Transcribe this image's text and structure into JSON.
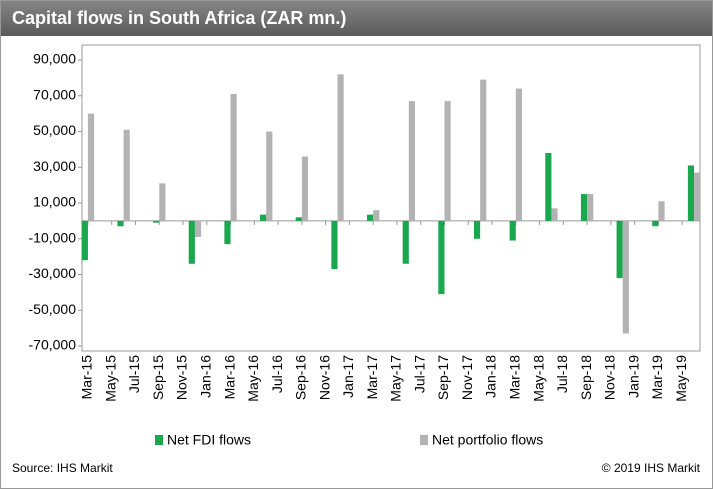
{
  "chart_data": {
    "type": "bar",
    "title": "Capital flows in South Africa (ZAR mn.)",
    "source": "Source: IHS Markit",
    "copyright": "© 2019 IHS Markit",
    "categories": [
      "Mar-15",
      null,
      "May-15",
      null,
      "Jul-15",
      null,
      "Sep-15",
      null,
      "Nov-15",
      null,
      "Jan-16",
      null,
      "Mar-16",
      null,
      "May-16",
      null,
      "Jul-16",
      null,
      "Sep-16",
      null,
      "Nov-16",
      null,
      "Jan-17",
      null,
      "Mar-17",
      null,
      "May-17",
      null,
      "Jul-17",
      null,
      "Sep-17",
      null,
      "Nov-17",
      null,
      "Jan-18",
      null,
      "Mar-18",
      null,
      "May-18",
      null,
      "Jul-18",
      null,
      "Sep-18",
      null,
      "Nov-18",
      null,
      "Jan-19",
      null,
      "Mar-19",
      null,
      "May-19",
      null
    ],
    "series": [
      {
        "name": "Net FDI flows",
        "color": "#1aa84f",
        "values": [
          -22000,
          null,
          null,
          -3000,
          null,
          null,
          -1000,
          null,
          null,
          -24000,
          null,
          null,
          -13000,
          null,
          null,
          3500,
          null,
          null,
          2000,
          null,
          null,
          -27000,
          null,
          null,
          3500,
          null,
          null,
          -24000,
          null,
          null,
          -41000,
          null,
          null,
          -10000,
          null,
          null,
          -11000,
          null,
          null,
          38000,
          null,
          null,
          15000,
          null,
          null,
          -32000,
          null,
          null,
          -3000,
          null,
          null,
          31000
        ]
      },
      {
        "name": "Net portfolio flows",
        "color": "#b3b3b3",
        "values": [
          60000,
          null,
          null,
          51000,
          null,
          null,
          21000,
          null,
          null,
          -9000,
          null,
          null,
          71000,
          null,
          null,
          50000,
          null,
          null,
          36000,
          null,
          null,
          82000,
          null,
          null,
          6000,
          null,
          null,
          67000,
          null,
          null,
          67000,
          null,
          null,
          79000,
          null,
          null,
          74000,
          null,
          null,
          7000,
          null,
          null,
          15000,
          null,
          null,
          -63000,
          null,
          null,
          11000,
          null,
          null,
          27000
        ]
      }
    ],
    "ylim": [
      -70000,
      90000
    ],
    "yticks": [
      {
        "value": -70000,
        "label": "-70,000"
      },
      {
        "value": -50000,
        "label": "-50,000"
      },
      {
        "value": -30000,
        "label": "-30,000"
      },
      {
        "value": -10000,
        "label": "-10,000"
      },
      {
        "value": 10000,
        "label": "10,000"
      },
      {
        "value": 30000,
        "label": "30,000"
      },
      {
        "value": 50000,
        "label": "50,000"
      },
      {
        "value": 70000,
        "label": "70,000"
      },
      {
        "value": 90000,
        "label": "90,000"
      }
    ],
    "grid": false
  }
}
